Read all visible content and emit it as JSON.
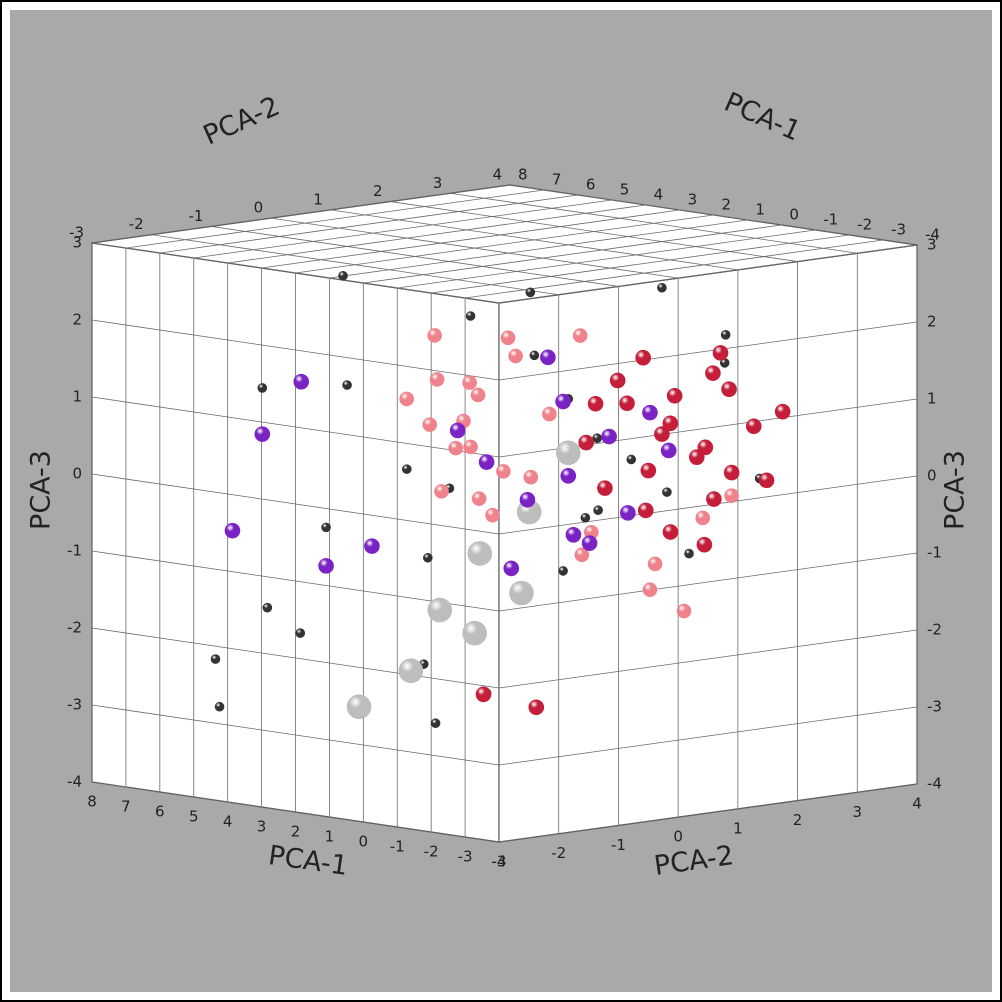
{
  "chart_data": {
    "type": "scatter3d",
    "xlabel": "PCA-1",
    "ylabel": "PCA-2",
    "zlabel": "PCA-3",
    "xlim": [
      -4,
      8
    ],
    "ylim": [
      -3,
      4
    ],
    "zlim": [
      -4,
      3
    ],
    "xticks": [
      -4,
      -3,
      -2,
      -1,
      0,
      1,
      2,
      3,
      4,
      5,
      6,
      7,
      8
    ],
    "yticks": [
      -3,
      -2,
      -1,
      0,
      1,
      2,
      3,
      4
    ],
    "zticks": [
      -4,
      -3,
      -2,
      -1,
      0,
      1,
      2,
      3
    ],
    "grid": true,
    "series": [
      {
        "color": "#333333",
        "x": [
          3.0,
          5.0,
          6.5,
          2.0,
          4.0,
          1.0,
          0.0,
          -1.0,
          2.5,
          4.5,
          6.0,
          3.5,
          1.5,
          0.5,
          -0.5,
          1.0,
          2.0,
          5.5,
          7.0,
          3.0,
          0.8,
          -1.5,
          -2.0,
          1.2,
          2.8,
          4.0,
          6.0,
          0.2,
          -0.8,
          3.8
        ],
        "y": [
          0.5,
          -0.5,
          -1.0,
          1.0,
          0.0,
          1.5,
          2.0,
          2.5,
          -0.5,
          -1.5,
          -2.0,
          0.0,
          0.5,
          1.2,
          1.8,
          1.0,
          0.2,
          -0.5,
          -1.5,
          1.5,
          0.8,
          2.2,
          2.5,
          1.4,
          -0.2,
          -1.0,
          -1.2,
          1.6,
          2.0,
          0.6
        ],
        "z": [
          2.0,
          2.5,
          1.0,
          1.5,
          0.0,
          -0.5,
          2.4,
          1.8,
          -1.0,
          -2.0,
          -3.0,
          -2.5,
          -1.5,
          0.5,
          -0.2,
          1.0,
          -2.8,
          -0.8,
          -2.5,
          2.2,
          -1.2,
          1.5,
          0.0,
          -0.6,
          -3.2,
          1.2,
          -1.8,
          0.2,
          -1.0,
          -0.3
        ]
      },
      {
        "color": "#bdbdbd",
        "x": [
          2.0,
          2.5,
          1.5,
          3.0,
          2.2,
          1.8,
          4.0,
          1.0
        ],
        "y": [
          0.0,
          -0.3,
          0.5,
          -0.5,
          0.2,
          0.8,
          -0.8,
          1.0
        ],
        "z": [
          -2.0,
          -1.7,
          -1.5,
          -2.5,
          -1.0,
          -0.5,
          -3.0,
          0.3
        ]
      },
      {
        "color": "#f0828c",
        "x": [
          2.5,
          1.8,
          3.0,
          2.2,
          1.5,
          2.8,
          0.5,
          1.0,
          3.3,
          2.0,
          1.2,
          0.8,
          2.6,
          1.9,
          3.5,
          0.2,
          -0.5,
          0.0,
          -1.0,
          1.4,
          2.3,
          0.6,
          3.1,
          -0.3,
          1.7
        ],
        "y": [
          0.2,
          -0.3,
          0.5,
          0.8,
          -0.6,
          -0.1,
          0.4,
          1.2,
          -0.4,
          0.3,
          1.5,
          -0.2,
          0.9,
          0.0,
          0.1,
          2.0,
          2.4,
          1.8,
          2.6,
          0.6,
          -0.5,
          1.0,
          0.7,
          2.2,
          -0.8
        ],
        "z": [
          1.2,
          0.8,
          0.3,
          1.5,
          0.5,
          -0.2,
          0.9,
          1.8,
          1.0,
          -0.5,
          -0.8,
          0.2,
          1.7,
          1.1,
          0.6,
          -1.2,
          -0.6,
          -1.5,
          -0.3,
          0.0,
          1.9,
          -1.0,
          -0.4,
          -1.8,
          1.4
        ]
      },
      {
        "color": "#c41e3a",
        "x": [
          0.0,
          -0.5,
          0.5,
          -1.0,
          0.8,
          -0.2,
          -1.3,
          0.3,
          -0.8,
          1.0,
          -1.5,
          0.1,
          -0.6,
          0.6,
          -1.1,
          0.4,
          -0.3,
          -1.8,
          0.9,
          -0.9,
          0.2,
          -0.4,
          -1.2,
          3.5,
          3.0
        ],
        "y": [
          2.0,
          2.3,
          1.7,
          2.6,
          1.5,
          2.1,
          2.8,
          1.9,
          2.4,
          1.3,
          2.9,
          2.2,
          1.8,
          1.6,
          2.5,
          2.0,
          2.7,
          3.0,
          1.4,
          2.2,
          1.8,
          2.5,
          2.3,
          1.0,
          1.6
        ],
        "z": [
          0.5,
          0.2,
          0.9,
          0.0,
          -0.2,
          1.0,
          0.6,
          -0.5,
          1.3,
          0.4,
          -0.1,
          -0.8,
          0.7,
          1.2,
          1.1,
          0.0,
          -0.4,
          0.8,
          0.9,
          -0.9,
          1.5,
          0.3,
          1.6,
          -3.0,
          -3.2
        ]
      },
      {
        "color": "#7a22c4",
        "x": [
          1.0,
          0.5,
          1.5,
          0.0,
          2.0,
          1.2,
          0.8,
          -0.2,
          1.8,
          0.3,
          2.5,
          6.5,
          6.5,
          5.5,
          4.5,
          5.0,
          1.6,
          0.9
        ],
        "y": [
          1.0,
          1.4,
          0.6,
          1.8,
          0.2,
          1.2,
          0.8,
          2.0,
          0.5,
          1.6,
          0.0,
          -1.0,
          -1.5,
          -0.5,
          -0.3,
          -1.2,
          1.0,
          1.3
        ],
        "z": [
          0.0,
          0.5,
          -0.3,
          0.8,
          0.2,
          -0.8,
          1.0,
          0.3,
          -1.2,
          -0.5,
          0.6,
          0.4,
          -0.8,
          -1.3,
          -1.0,
          1.2,
          1.5,
          -0.9
        ]
      }
    ]
  }
}
